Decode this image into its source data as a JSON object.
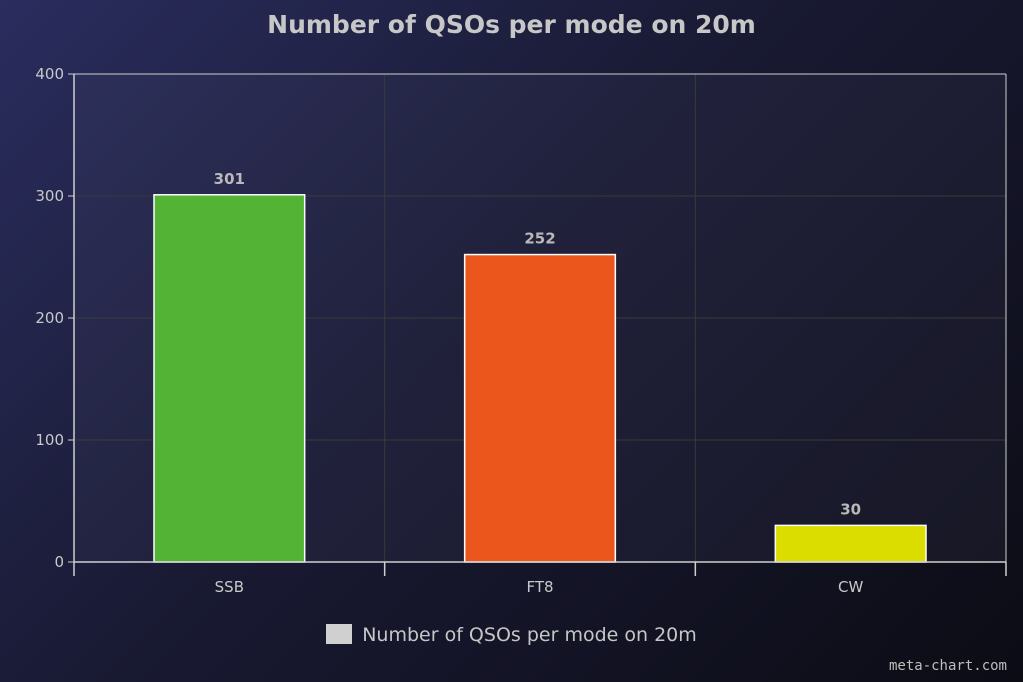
{
  "chart_data": {
    "type": "bar",
    "title": "Number of QSOs per mode on 20m",
    "categories": [
      "SSB",
      "FT8",
      "CW"
    ],
    "series": [
      {
        "name": "Number of QSOs per mode on 20m",
        "values": [
          301,
          252,
          30
        ],
        "colors": [
          "#52b334",
          "#ea561c",
          "#dbdc00"
        ]
      }
    ],
    "data_labels": [
      "301",
      "252",
      "30"
    ],
    "ylim": [
      0,
      400
    ],
    "yticks": [
      0,
      100,
      200,
      300,
      400
    ],
    "ytick_labels": [
      "0",
      "100",
      "200",
      "300",
      "400"
    ],
    "xlabel": "",
    "ylabel": "",
    "grid": true,
    "legend": {
      "label": "Number of QSOs per mode on 20m",
      "placement": "bottom",
      "swatch_color": "#d0d0d0"
    }
  },
  "watermark": "meta-chart.com",
  "colors": {
    "background": "#1c1d38",
    "axis": "#cfcfcf",
    "grid": "#3a3a3a",
    "bar_border": "#ffffff"
  }
}
